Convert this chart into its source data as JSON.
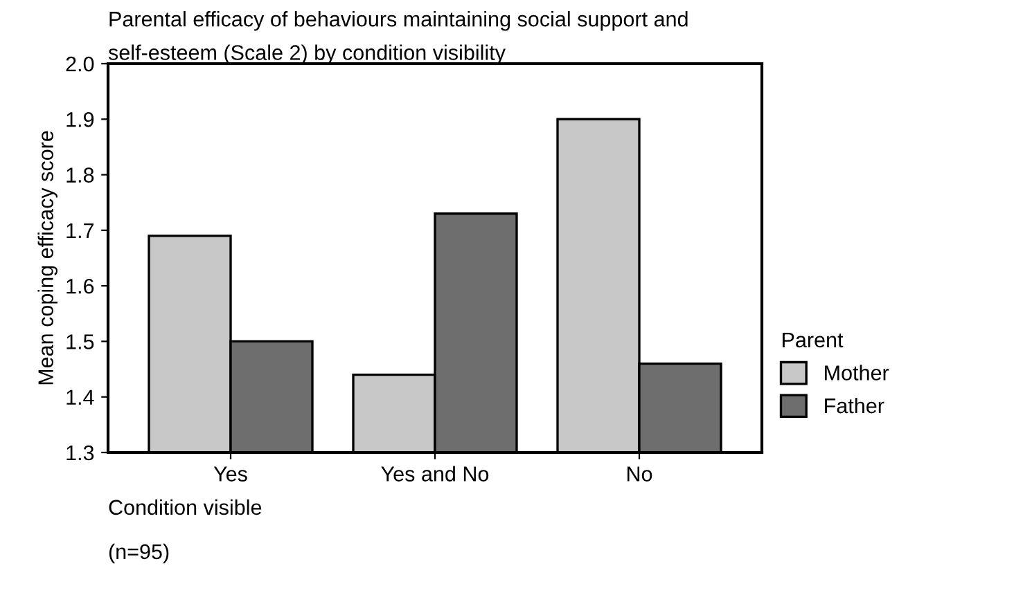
{
  "chart_data": {
    "type": "bar",
    "title": "Parental efficacy of behaviours maintaining social support and\nself-esteem (Scale 2) by condition visibility",
    "xlabel": "Condition visible",
    "ylabel": "Mean coping efficacy score",
    "legend_title": "Parent",
    "annotations": [
      "(n=95)"
    ],
    "categories": [
      "Yes",
      "Yes and No",
      "No"
    ],
    "series": [
      {
        "name": "Mother",
        "color": "#c8c8c8",
        "values": [
          1.69,
          1.44,
          1.9
        ]
      },
      {
        "name": "Father",
        "color": "#6e6e6e",
        "values": [
          1.5,
          1.73,
          1.46
        ]
      }
    ],
    "ylim": [
      1.3,
      2.0
    ],
    "yticks": [
      1.3,
      1.4,
      1.5,
      1.6,
      1.7,
      1.8,
      1.9,
      {
        "value": 2.0,
        "label": "2.0"
      }
    ],
    "grid": false,
    "legend": "right"
  }
}
